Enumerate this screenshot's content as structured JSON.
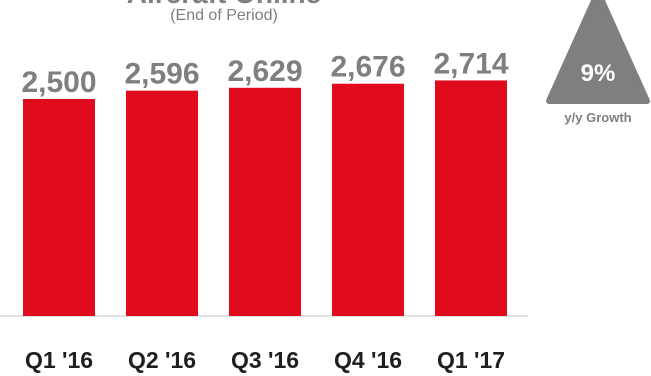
{
  "chart_data": {
    "type": "bar",
    "title": "Aircraft Online",
    "subtitle": "(End of Period)",
    "categories": [
      "Q1 '16",
      "Q2 '16",
      "Q3 '16",
      "Q4 '16",
      "Q1 '17"
    ],
    "values": [
      2500,
      2596,
      2629,
      2676,
      2714
    ],
    "value_labels": [
      "2,500",
      "2,596",
      "2,629",
      "2,676",
      "2,714"
    ],
    "bar_color": "#e00b1c",
    "xlabel": "",
    "ylabel": "",
    "grid": false,
    "legend": "none"
  },
  "growth_badge": {
    "value": "9%",
    "label": "y/y Growth",
    "color": "#7f7f7f"
  }
}
